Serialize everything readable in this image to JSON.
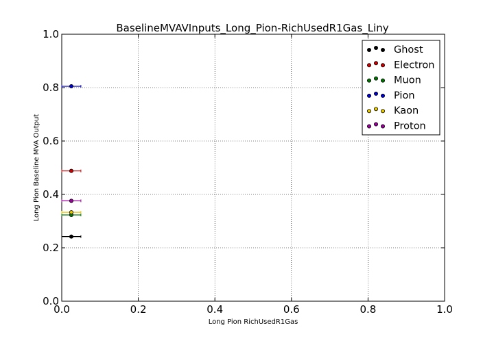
{
  "chart_data": {
    "type": "scatter",
    "title": "BaselineMVAVInputs_Long_Pion-RichUsedR1Gas_Liny",
    "xlabel": "Long Pion RichUsedR1Gas",
    "ylabel": "Long Pion Baseline MVA Output",
    "xlim": [
      0.0,
      1.0
    ],
    "ylim": [
      0.0,
      1.0
    ],
    "xticks": [
      "0.0",
      "0.2",
      "0.4",
      "0.6",
      "0.8",
      "1.0"
    ],
    "yticks": [
      "0.0",
      "0.2",
      "0.4",
      "0.6",
      "0.8",
      "1.0"
    ],
    "grid": true,
    "legend_position": "top-right",
    "series": [
      {
        "name": "Ghost",
        "color": "#000000",
        "x": 0.025,
        "xerr": 0.025,
        "y": 0.242
      },
      {
        "name": "Electron",
        "color": "#cc0000",
        "x": 0.025,
        "xerr": 0.025,
        "y": 0.488
      },
      {
        "name": "Muon",
        "color": "#007700",
        "x": 0.025,
        "xerr": 0.025,
        "y": 0.323
      },
      {
        "name": "Pion",
        "color": "#0000cc",
        "x": 0.025,
        "xerr": 0.025,
        "y": 0.805
      },
      {
        "name": "Kaon",
        "color": "#e6c800",
        "x": 0.025,
        "xerr": 0.025,
        "y": 0.333
      },
      {
        "name": "Proton",
        "color": "#990099",
        "x": 0.025,
        "xerr": 0.025,
        "y": 0.376
      }
    ]
  }
}
